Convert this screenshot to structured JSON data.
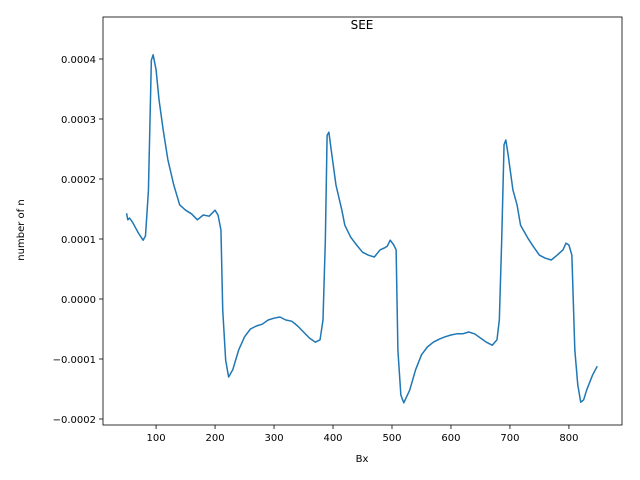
{
  "chart_data": {
    "type": "line",
    "title": "SEE",
    "xlabel": "Bx",
    "ylabel": "number of n",
    "x": [
      50,
      52,
      55,
      60,
      70,
      78,
      82,
      87,
      92,
      95,
      100,
      105,
      112,
      120,
      130,
      140,
      150,
      160,
      170,
      180,
      190,
      200,
      205,
      210,
      213,
      218,
      223,
      230,
      240,
      250,
      260,
      270,
      280,
      290,
      300,
      310,
      320,
      330,
      340,
      350,
      360,
      370,
      378,
      383,
      387,
      390,
      393,
      397,
      405,
      415,
      420,
      430,
      440,
      450,
      460,
      470,
      480,
      487,
      492,
      497,
      503,
      507,
      510,
      515,
      520,
      530,
      540,
      550,
      560,
      570,
      580,
      590,
      600,
      610,
      620,
      630,
      640,
      650,
      660,
      670,
      678,
      682,
      686,
      690,
      693,
      697,
      705,
      712,
      718,
      730,
      740,
      750,
      760,
      770,
      780,
      790,
      795,
      800,
      805,
      810,
      815,
      820,
      825,
      830,
      840,
      848
    ],
    "series": [
      {
        "color": "#1f77b4",
        "values": [
          0.000143,
          0.000132,
          0.000135,
          0.000128,
          0.00011,
          9.8e-05,
          0.000105,
          0.00018,
          0.000398,
          0.000407,
          0.000382,
          0.000332,
          0.000282,
          0.000232,
          0.00019,
          0.000157,
          0.000148,
          0.000142,
          0.000132,
          0.00014,
          0.000138,
          0.000148,
          0.00014,
          0.000115,
          -1.8e-05,
          -0.000102,
          -0.00013,
          -0.000118,
          -8.5e-05,
          -6.3e-05,
          -5e-05,
          -4.5e-05,
          -4.2e-05,
          -3.5e-05,
          -3.2e-05,
          -3e-05,
          -3.5e-05,
          -3.7e-05,
          -4.5e-05,
          -5.5e-05,
          -6.5e-05,
          -7.2e-05,
          -6.8e-05,
          -3.5e-05,
          9.8e-05,
          0.000273,
          0.000278,
          0.000248,
          0.00019,
          0.000148,
          0.000123,
          0.000103,
          9e-05,
          7.8e-05,
          7.3e-05,
          7e-05,
          8.2e-05,
          8.5e-05,
          8.8e-05,
          9.8e-05,
          9e-05,
          8.2e-05,
          -8.5e-05,
          -0.00016,
          -0.000173,
          -0.000152,
          -0.000118,
          -9.3e-05,
          -8e-05,
          -7.2e-05,
          -6.7e-05,
          -6.3e-05,
          -6e-05,
          -5.8e-05,
          -5.8e-05,
          -5.5e-05,
          -5.8e-05,
          -6.5e-05,
          -7.2e-05,
          -7.7e-05,
          -6.8e-05,
          -3.5e-05,
          9.8e-05,
          0.000257,
          0.000265,
          0.00024,
          0.000182,
          0.000157,
          0.000123,
          0.000102,
          8.7e-05,
          7.3e-05,
          6.8e-05,
          6.5e-05,
          7.3e-05,
          8.2e-05,
          9.3e-05,
          9e-05,
          7.3e-05,
          -8.5e-05,
          -0.000143,
          -0.000172,
          -0.000168,
          -0.000152,
          -0.000127,
          -0.000112
        ]
      }
    ],
    "xlim": [
      10,
      890
    ],
    "ylim": [
      -0.00021,
      0.00047
    ],
    "xticks": [
      100,
      200,
      300,
      400,
      500,
      600,
      700,
      800
    ],
    "yticks": [
      {
        "value": -0.0002,
        "label": "−0.0002"
      },
      {
        "value": -0.0001,
        "label": "−0.0001"
      },
      {
        "value": 0,
        "label": "0.0000"
      },
      {
        "value": 0.0001,
        "label": "0.0001"
      },
      {
        "value": 0.0002,
        "label": "0.0002"
      },
      {
        "value": 0.0003,
        "label": "0.0003"
      },
      {
        "value": 0.0004,
        "label": "0.0004"
      }
    ]
  }
}
